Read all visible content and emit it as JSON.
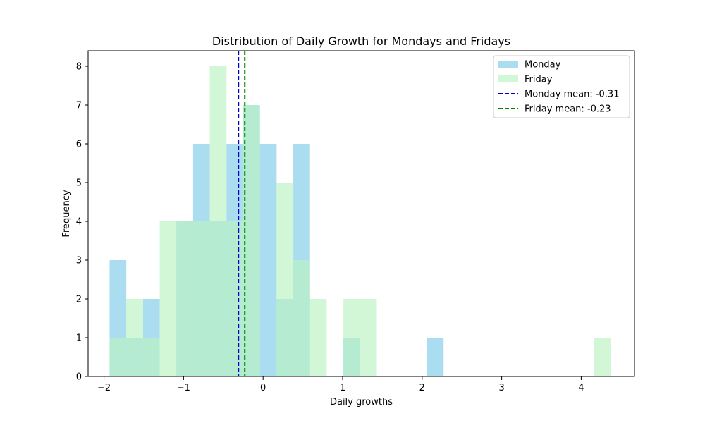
{
  "chart_data": {
    "type": "bar",
    "subtype": "histogram",
    "title": "Distribution of Daily Growth for Mondays and Fridays",
    "xlabel": "Daily growths",
    "ylabel": "Frequency",
    "xlim": [
      -2.2,
      4.67
    ],
    "ylim": [
      0,
      8.4
    ],
    "xticks": [
      -2,
      -1,
      0,
      1,
      2,
      3,
      4
    ],
    "xtick_labels": [
      "−2",
      "−1",
      "0",
      "1",
      "2",
      "3",
      "4"
    ],
    "yticks": [
      0,
      1,
      2,
      3,
      4,
      5,
      6,
      7,
      8
    ],
    "ytick_labels": [
      "0",
      "1",
      "2",
      "3",
      "4",
      "5",
      "6",
      "7",
      "8"
    ],
    "grid": false,
    "legend_position": "top-right",
    "series": [
      {
        "name": "Monday",
        "color": "#87ceeb",
        "opacity": 0.7,
        "bin_edges": [
          -1.93,
          -1.72,
          -1.51,
          -1.3,
          -1.09,
          -0.88,
          -0.67,
          -0.46,
          -0.25,
          -0.04,
          0.17,
          0.38,
          0.59,
          0.8,
          1.01,
          1.22,
          1.43,
          1.64,
          1.85,
          2.06,
          2.27
        ],
        "counts": [
          3,
          1,
          2,
          0,
          4,
          6,
          4,
          6,
          7,
          6,
          2,
          6,
          0,
          0,
          1,
          0,
          0,
          0,
          0,
          1
        ]
      },
      {
        "name": "Friday",
        "color": "#b8f2c0",
        "opacity": 0.65,
        "bin_edges": [
          -1.93,
          -1.72,
          -1.51,
          -1.3,
          -1.09,
          -0.88,
          -0.67,
          -0.46,
          -0.25,
          -0.04,
          0.17,
          0.38,
          0.59,
          0.8,
          1.01,
          1.22,
          1.43,
          1.64,
          1.85,
          2.06,
          2.27,
          2.48,
          2.69,
          2.9,
          3.11,
          3.32,
          3.53,
          3.74,
          3.95,
          4.16,
          4.37
        ],
        "counts": [
          1,
          2,
          1,
          4,
          4,
          4,
          8,
          4,
          7,
          0,
          5,
          3,
          2,
          0,
          2,
          2,
          0,
          0,
          0,
          0,
          0,
          0,
          0,
          0,
          0,
          0,
          0,
          0,
          0,
          1
        ]
      }
    ],
    "lines": [
      {
        "name": "Monday mean: -0.31",
        "x": -0.31,
        "color": "#0000cd",
        "style": "dashed"
      },
      {
        "name": "Friday mean: -0.23",
        "x": -0.23,
        "color": "#008000",
        "style": "dashed"
      }
    ]
  }
}
